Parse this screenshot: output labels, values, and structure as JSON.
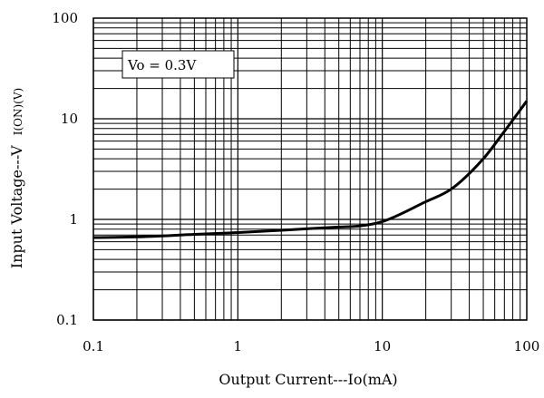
{
  "chart_data": {
    "type": "line",
    "title": "",
    "xlabel": "Output Current---Io(mA)",
    "ylabel_main": "Input Voltage---V",
    "ylabel_sub": "I(ON)(V)",
    "x_scale": "log",
    "y_scale": "log",
    "xlim": [
      0.1,
      100
    ],
    "ylim": [
      0.1,
      100
    ],
    "grid": true,
    "x_tick_labels": [
      "0.1",
      "1",
      "10",
      "100"
    ],
    "y_tick_labels": [
      "0.1",
      "1",
      "10",
      "100"
    ],
    "annotation": "Vo = 0.3V",
    "series": [
      {
        "color": "#000000",
        "x": [
          0.1,
          0.2,
          0.5,
          1,
          2,
          5,
          7,
          10,
          20,
          30,
          50,
          70,
          100
        ],
        "y": [
          0.66,
          0.67,
          0.71,
          0.74,
          0.78,
          0.84,
          0.86,
          0.95,
          1.5,
          2.0,
          4.0,
          7.5,
          15
        ]
      }
    ]
  }
}
